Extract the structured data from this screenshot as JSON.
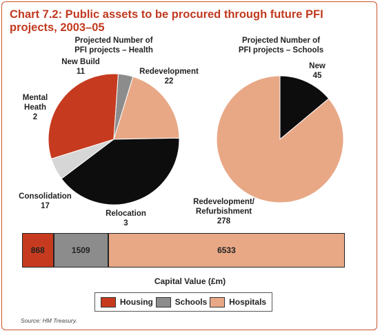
{
  "title": "Chart 7.2: Public assets to be procured through future PFI projects, 2003–05",
  "source": "Source: HM Treasury.",
  "colors": {
    "housing": "#c63b1f",
    "schools": "#8c8c8c",
    "hospitals": "#e8a886",
    "black": "#0d0d0d",
    "light_grey": "#d6d6d6"
  },
  "chart_data": [
    {
      "type": "pie",
      "title": [
        "Projected Number of",
        "PFI projects – Health"
      ],
      "slices": [
        {
          "label": "New Build",
          "value": 11,
          "color": "#e8a886"
        },
        {
          "label": "Redevelopment",
          "value": 22,
          "color": "#0d0d0d"
        },
        {
          "label": "Relocation",
          "value": 3,
          "color": "#d6d6d6"
        },
        {
          "label": "Consolidation",
          "value": 17,
          "color": "#c63b1f"
        },
        {
          "label": "Mental Heath",
          "value": 2,
          "color": "#8c8c8c"
        }
      ]
    },
    {
      "type": "pie",
      "title": [
        "Projected Number of",
        "PFI projects – Schools"
      ],
      "slices": [
        {
          "label": "New",
          "value": 45,
          "color": "#0d0d0d"
        },
        {
          "label": "Redevelopment/ Refurbishment",
          "value": 278,
          "color": "#e8a886"
        }
      ]
    },
    {
      "type": "bar",
      "orientation": "horizontal-stacked",
      "xlabel": "Capital Value (£m)",
      "series": [
        {
          "name": "Housing",
          "value": 868,
          "color": "#c63b1f"
        },
        {
          "name": "Schools",
          "value": 1509,
          "color": "#8c8c8c"
        },
        {
          "name": "Hospitals",
          "value": 6533,
          "color": "#e8a886"
        }
      ],
      "legend": "bottom"
    }
  ],
  "labels": {
    "health_title_1": "Projected Number of",
    "health_title_2": "PFI projects – Health",
    "new_build_name": "New Build",
    "new_build_value": "11",
    "redevelopment_name": "Redevelopment",
    "redevelopment_value": "22",
    "mental_name_1": "Mental",
    "mental_name_2": "Heath",
    "mental_value": "2",
    "consolidation_name": "Consolidation",
    "consolidation_value": "17",
    "relocation_name": "Relocation",
    "relocation_value": "3",
    "schools_title_1": "Projected Number of",
    "schools_title_2": "PFI projects – Schools",
    "new_name": "New",
    "new_value": "45",
    "refurb_name_1": "Redevelopment/",
    "refurb_name_2": "Refurbishment",
    "refurb_value": "278"
  },
  "bar": {
    "housing_label": "868",
    "schools_label": "1509",
    "hospitals_label": "6533",
    "axis_label": "Capital Value (£m)"
  },
  "legend": {
    "housing": "Housing",
    "schools": "Schools",
    "hospitals": "Hospitals"
  }
}
